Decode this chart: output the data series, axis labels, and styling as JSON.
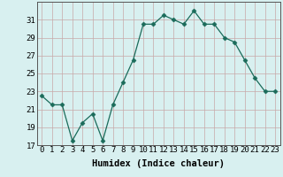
{
  "x": [
    0,
    1,
    2,
    3,
    4,
    5,
    6,
    7,
    8,
    9,
    10,
    11,
    12,
    13,
    14,
    15,
    16,
    17,
    18,
    19,
    20,
    21,
    22,
    23
  ],
  "y": [
    22.5,
    21.5,
    21.5,
    17.5,
    19.5,
    20.5,
    17.5,
    21.5,
    24.0,
    26.5,
    30.5,
    30.5,
    31.5,
    31.0,
    30.5,
    32.0,
    30.5,
    30.5,
    29.0,
    28.5,
    26.5,
    24.5,
    23.0,
    23.0
  ],
  "xlabel": "Humidex (Indice chaleur)",
  "ylim": [
    17,
    33
  ],
  "yticks": [
    17,
    19,
    21,
    23,
    25,
    27,
    29,
    31
  ],
  "xticks": [
    0,
    1,
    2,
    3,
    4,
    5,
    6,
    7,
    8,
    9,
    10,
    11,
    12,
    13,
    14,
    15,
    16,
    17,
    18,
    19,
    20,
    21,
    22,
    23
  ],
  "line_color": "#1a6b5a",
  "marker": "D",
  "marker_size": 2.5,
  "bg_color": "#d8f0f0",
  "grid_color": "#c8a8a8",
  "tick_label_fontsize": 6.5,
  "xlabel_fontsize": 7.5
}
